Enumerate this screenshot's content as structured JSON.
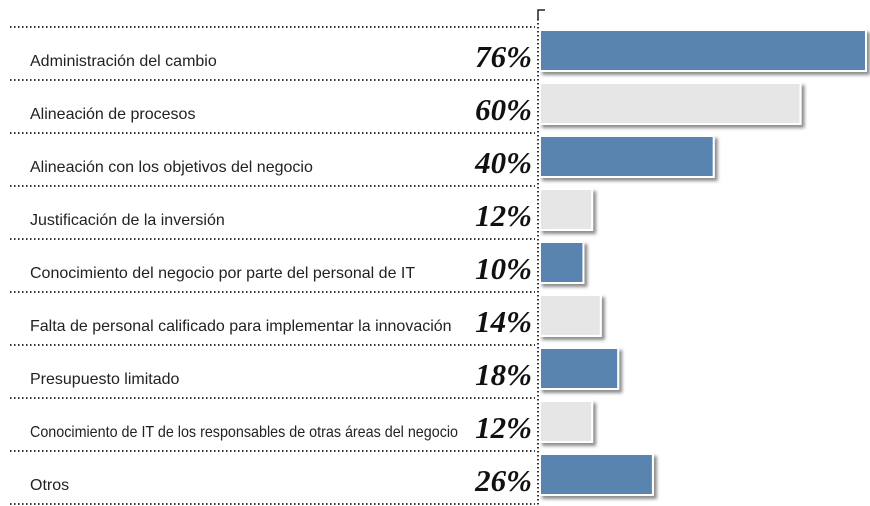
{
  "chart_data": {
    "type": "bar",
    "orientation": "horizontal",
    "categories": [
      "Administración del cambio",
      "Alineación de procesos",
      "Alineación con los objetivos del negocio",
      "Justificación de la inversión",
      "Conocimiento del negocio por parte del personal de IT",
      "Falta de personal calificado para implementar la innovación",
      "Presupuesto limitado",
      "Conocimiento de IT de los responsables de otras áreas del negocio",
      "Otros"
    ],
    "values": [
      76,
      60,
      40,
      12,
      10,
      14,
      18,
      12,
      26
    ],
    "value_labels": [
      "76%",
      "60%",
      "40%",
      "12%",
      "10%",
      "14%",
      "18%",
      "12%",
      "26%"
    ],
    "colors": [
      "#5a84b0",
      "#e6e6e6",
      "#5a84b0",
      "#e6e6e6",
      "#5a84b0",
      "#e6e6e6",
      "#5a84b0",
      "#e6e6e6",
      "#5a84b0"
    ]
  }
}
